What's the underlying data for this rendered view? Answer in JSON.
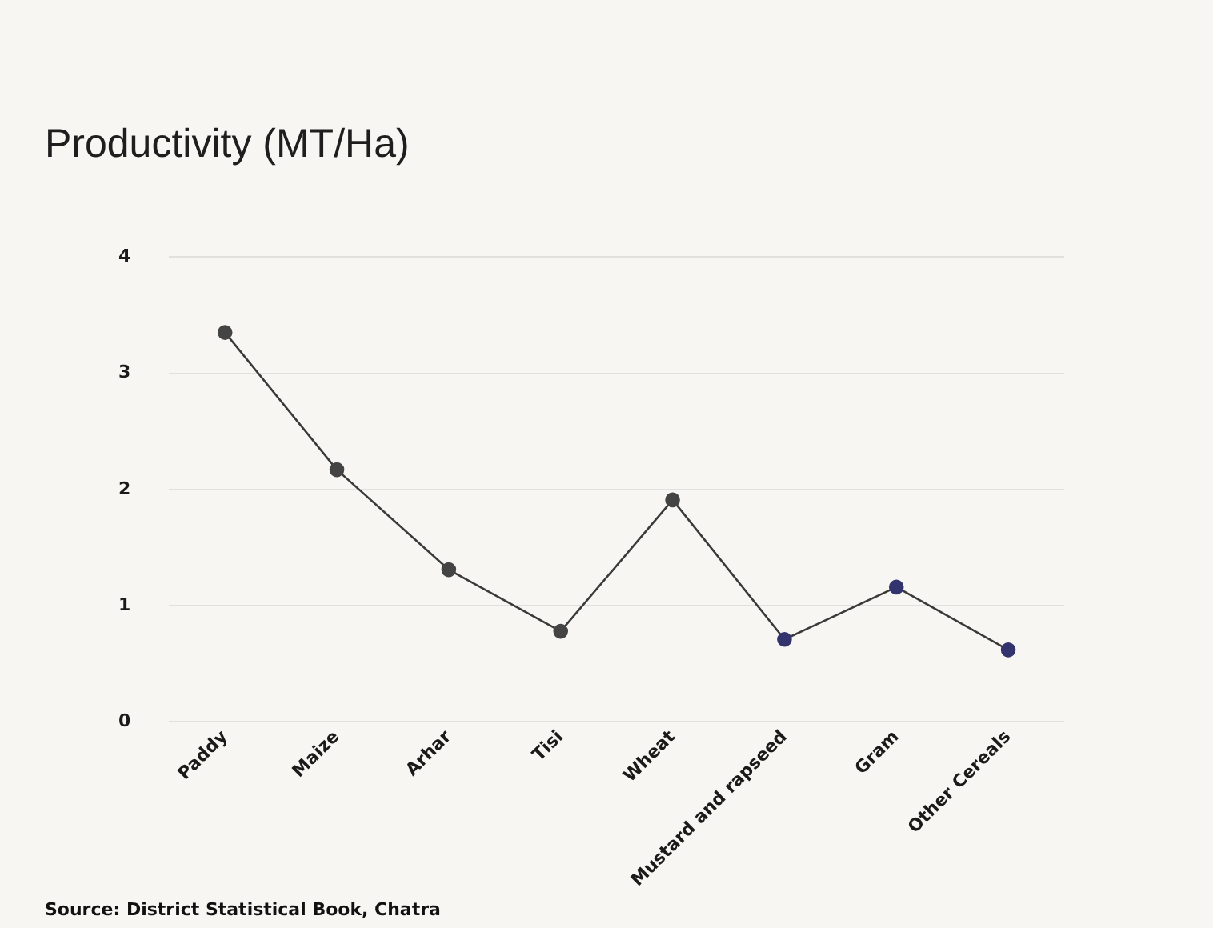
{
  "chart_data": {
    "type": "line",
    "title": "Productivity (MT/Ha)",
    "annotations": [
      "Source: District Statistical Book, Chatra"
    ],
    "categories": [
      "Paddy",
      "Maize",
      "Arhar",
      "Tisi",
      "Wheat",
      "Mustard and rapseed",
      "Gram",
      "Other Cereals"
    ],
    "series": [
      {
        "color": "#3a3a3a",
        "colors": [
          "#444444",
          "#444444",
          "#444444",
          "#444444",
          "#444444",
          "#33336e",
          "#33336e",
          "#33336e"
        ],
        "values": [
          3.35,
          2.17,
          1.31,
          0.78,
          1.91,
          0.71,
          1.16,
          0.62
        ]
      }
    ],
    "ylim": [
      0,
      4
    ],
    "yticks": [
      0,
      1,
      2,
      3,
      4
    ],
    "grid": "y",
    "legend": false,
    "marker": "circle",
    "line_style": "solid"
  }
}
